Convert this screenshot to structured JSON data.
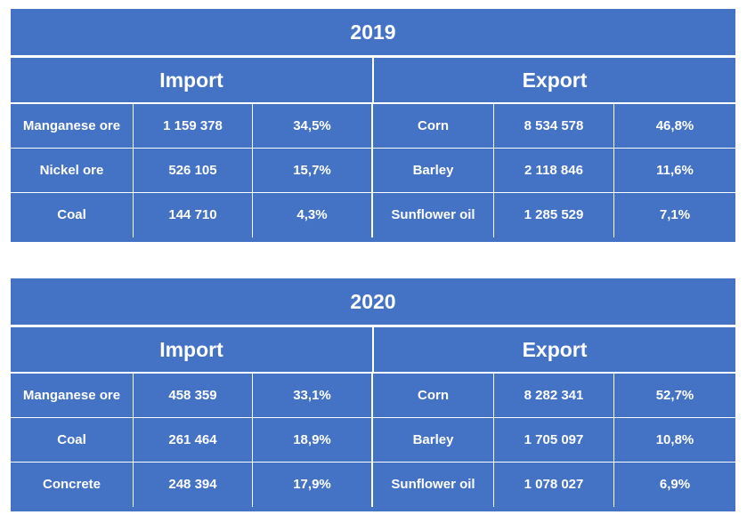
{
  "tables": [
    {
      "year": "2019",
      "import_label": "Import",
      "export_label": "Export",
      "rows": [
        {
          "import_item": "Manganese ore",
          "import_value": "1 159 378",
          "import_share": "34,5%",
          "export_item": "Corn",
          "export_value": "8 534 578",
          "export_share": "46,8%"
        },
        {
          "import_item": "Nickel ore",
          "import_value": "526 105",
          "import_share": "15,7%",
          "export_item": "Barley",
          "export_value": "2 118 846",
          "export_share": "11,6%"
        },
        {
          "import_item": "Coal",
          "import_value": "144 710",
          "import_share": "4,3%",
          "export_item": "Sunflower oil",
          "export_value": "1 285 529",
          "export_share": "7,1%"
        }
      ]
    },
    {
      "year": "2020",
      "import_label": "Import",
      "export_label": "Export",
      "rows": [
        {
          "import_item": "Manganese ore",
          "import_value": "458 359",
          "import_share": "33,1%",
          "export_item": "Corn",
          "export_value": "8 282 341",
          "export_share": "52,7%"
        },
        {
          "import_item": "Coal",
          "import_value": "261 464",
          "import_share": "18,9%",
          "export_item": "Barley",
          "export_value": "1 705 097",
          "export_share": "10,8%"
        },
        {
          "import_item": "Concrete",
          "import_value": "248 394",
          "import_share": "17,9%",
          "export_item": "Sunflower oil",
          "export_value": "1 078 027",
          "export_share": "6,9%"
        }
      ]
    }
  ],
  "colors": {
    "table_background": "#4472c4",
    "text": "#ffffff",
    "grid_lines": "#ffffff"
  }
}
